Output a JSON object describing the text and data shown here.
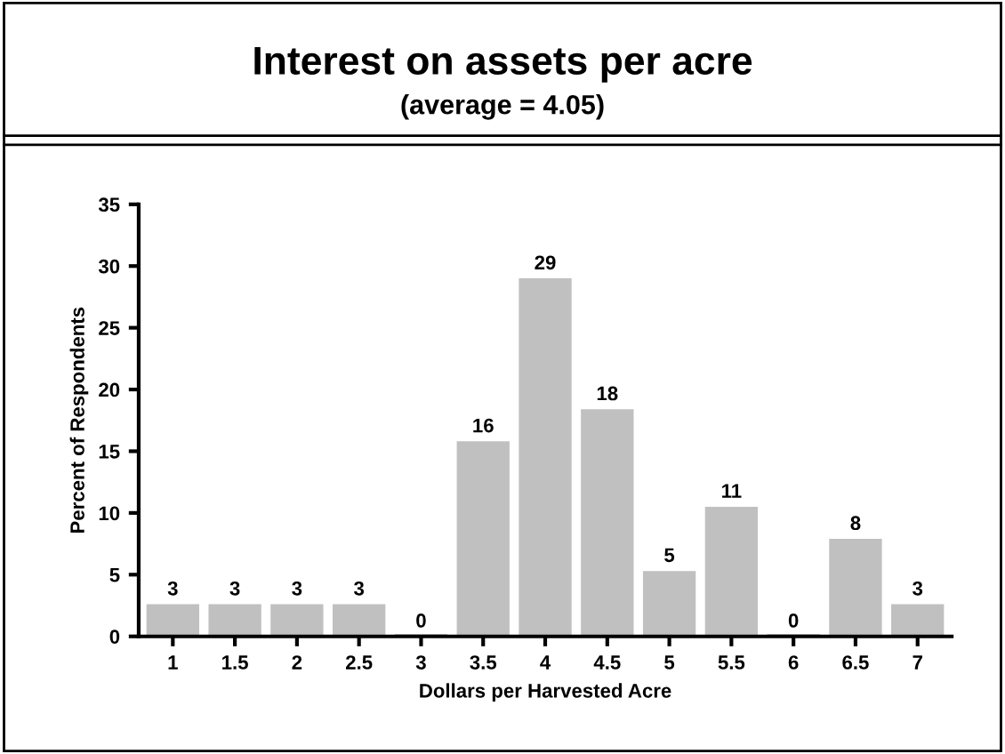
{
  "chart_data": {
    "type": "bar",
    "title": "Interest on assets per acre",
    "subtitle": "(average = 4.05)",
    "xlabel": "Dollars per Harvested Acre",
    "ylabel": "Percent of Respondents",
    "categories": [
      "1",
      "1.5",
      "2",
      "2.5",
      "3",
      "3.5",
      "4",
      "4.5",
      "5",
      "5.5",
      "6",
      "6.5",
      "7"
    ],
    "values": [
      2.6,
      2.6,
      2.6,
      2.6,
      0,
      15.8,
      29.0,
      18.4,
      5.3,
      10.5,
      0,
      7.9,
      2.6
    ],
    "value_labels": [
      "3",
      "3",
      "3",
      "3",
      "0",
      "16",
      "29",
      "18",
      "5",
      "11",
      "0",
      "8",
      "3"
    ],
    "color": "#c0c0c0",
    "ylim": [
      0,
      35
    ],
    "yticks": [
      0,
      5,
      10,
      15,
      20,
      25,
      30,
      35
    ],
    "grid": false,
    "legend": false
  }
}
